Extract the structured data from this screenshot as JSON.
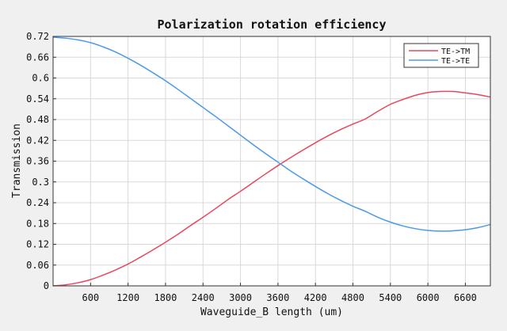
{
  "chart_data": {
    "type": "line",
    "title": "Polarization rotation efficiency",
    "xlabel": "Waveguide_B length (um)",
    "ylabel": "Transmission",
    "xlim": [
      0,
      7000
    ],
    "ylim": [
      0,
      0.72
    ],
    "xticks": [
      600,
      1200,
      1800,
      2400,
      3000,
      3600,
      4200,
      4800,
      5400,
      6000,
      6600
    ],
    "xtick_labels": [
      "600",
      "1200",
      "1800",
      "2400",
      "3000",
      "3600",
      "4200",
      "4800",
      "5400",
      "6000",
      "6600"
    ],
    "yticks": [
      0,
      0.06,
      0.12,
      0.18,
      0.24,
      0.3,
      0.36,
      0.42,
      0.48,
      0.54,
      0.6,
      0.66,
      0.72
    ],
    "ytick_labels": [
      "0",
      "0.06",
      "0.12",
      "0.18",
      "0.24",
      "0.3",
      "0.36",
      "0.42",
      "0.48",
      "0.54",
      "0.6",
      "0.66",
      "0.72"
    ],
    "grid": true,
    "legend_position": "top-right",
    "x": [
      0,
      200,
      400,
      600,
      800,
      1000,
      1200,
      1400,
      1600,
      1800,
      2000,
      2200,
      2400,
      2600,
      2800,
      3000,
      3200,
      3400,
      3600,
      3800,
      4000,
      4200,
      4400,
      4600,
      4800,
      5000,
      5200,
      5400,
      5600,
      5800,
      6000,
      6200,
      6400,
      6600,
      6800,
      7000
    ],
    "series": [
      {
        "name": "TE->TM",
        "color": "#e8475f",
        "values": [
          0.0,
          0.003,
          0.009,
          0.018,
          0.031,
          0.046,
          0.063,
          0.083,
          0.104,
          0.126,
          0.149,
          0.174,
          0.198,
          0.223,
          0.249,
          0.273,
          0.298,
          0.323,
          0.347,
          0.37,
          0.392,
          0.413,
          0.433,
          0.451,
          0.467,
          0.482,
          0.504,
          0.524,
          0.538,
          0.55,
          0.558,
          0.561,
          0.561,
          0.557,
          0.552,
          0.545
        ]
      },
      {
        "name": "TE->TE",
        "color": "#4b9ae8",
        "values": [
          0.718,
          0.715,
          0.71,
          0.702,
          0.69,
          0.675,
          0.657,
          0.637,
          0.615,
          0.592,
          0.567,
          0.541,
          0.515,
          0.489,
          0.462,
          0.435,
          0.408,
          0.382,
          0.357,
          0.332,
          0.309,
          0.287,
          0.266,
          0.247,
          0.23,
          0.215,
          0.198,
          0.184,
          0.173,
          0.165,
          0.16,
          0.158,
          0.159,
          0.162,
          0.168,
          0.177
        ]
      }
    ]
  }
}
